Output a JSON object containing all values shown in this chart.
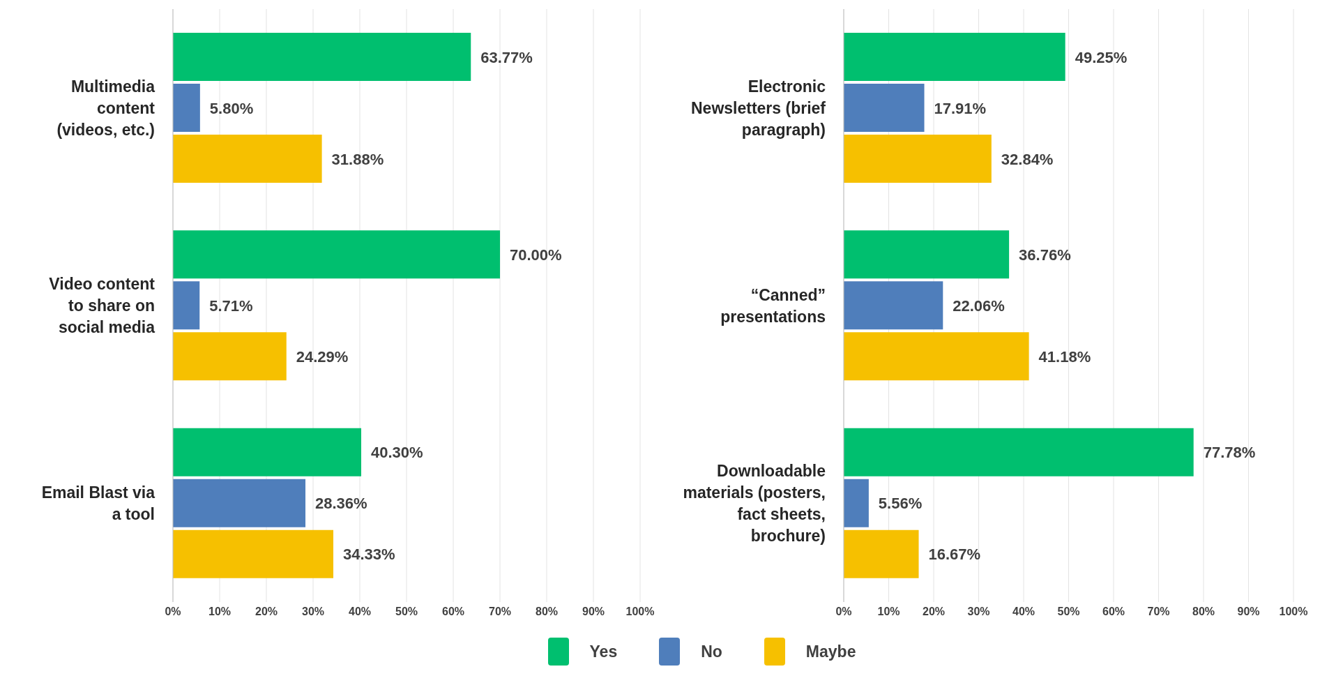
{
  "chart_data": [
    {
      "type": "bar",
      "orientation": "horizontal",
      "categories": [
        "Multimedia content (videos, etc.)",
        "Video content to share on social media",
        "Email Blast via a tool"
      ],
      "series": [
        {
          "name": "Yes",
          "color": "#00bf6f",
          "values": [
            63.77,
            70.0,
            40.3
          ],
          "value_labels": [
            "63.77%",
            "70.00%",
            "40.30%"
          ]
        },
        {
          "name": "No",
          "color": "#4f7ebb",
          "values": [
            5.8,
            5.71,
            28.36
          ],
          "value_labels": [
            "5.80%",
            "5.71%",
            "28.36%"
          ]
        },
        {
          "name": "Maybe",
          "color": "#f6c000",
          "values": [
            31.88,
            24.29,
            34.33
          ],
          "value_labels": [
            "31.88%",
            "24.29%",
            "34.33%"
          ]
        }
      ],
      "xlim": [
        0,
        100
      ],
      "xticks": [
        {
          "value": 0,
          "label": "0%"
        },
        {
          "value": 10,
          "label": "10%"
        },
        {
          "value": 20,
          "label": "20%"
        },
        {
          "value": 30,
          "label": "30%"
        },
        {
          "value": 40,
          "label": "40%"
        },
        {
          "value": 50,
          "label": "50%"
        },
        {
          "value": 60,
          "label": "60%"
        },
        {
          "value": 70,
          "label": "70%"
        },
        {
          "value": 80,
          "label": "80%"
        },
        {
          "value": 90,
          "label": "90%"
        },
        {
          "value": 100,
          "label": "100%"
        }
      ],
      "grid": "x",
      "legend": "bottom"
    },
    {
      "type": "bar",
      "orientation": "horizontal",
      "categories": [
        "Electronic Newsletters (brief paragraph)",
        "“Canned” presentations",
        "Downloadable materials (posters, fact sheets, brochure)"
      ],
      "series": [
        {
          "name": "Yes",
          "color": "#00bf6f",
          "values": [
            49.25,
            36.76,
            77.78
          ],
          "value_labels": [
            "49.25%",
            "36.76%",
            "77.78%"
          ]
        },
        {
          "name": "No",
          "color": "#4f7ebb",
          "values": [
            17.91,
            22.06,
            5.56
          ],
          "value_labels": [
            "17.91%",
            "22.06%",
            "5.56%"
          ]
        },
        {
          "name": "Maybe",
          "color": "#f6c000",
          "values": [
            32.84,
            41.18,
            16.67
          ],
          "value_labels": [
            "32.84%",
            "41.18%",
            "16.67%"
          ]
        }
      ],
      "xlim": [
        0,
        100
      ],
      "xticks": [
        {
          "value": 0,
          "label": "0%"
        },
        {
          "value": 10,
          "label": "10%"
        },
        {
          "value": 20,
          "label": "20%"
        },
        {
          "value": 30,
          "label": "30%"
        },
        {
          "value": 40,
          "label": "40%"
        },
        {
          "value": 50,
          "label": "50%"
        },
        {
          "value": 60,
          "label": "60%"
        },
        {
          "value": 70,
          "label": "70%"
        },
        {
          "value": 80,
          "label": "80%"
        },
        {
          "value": 90,
          "label": "90%"
        },
        {
          "value": 100,
          "label": "100%"
        }
      ],
      "grid": "x",
      "legend": "bottom"
    }
  ]
}
